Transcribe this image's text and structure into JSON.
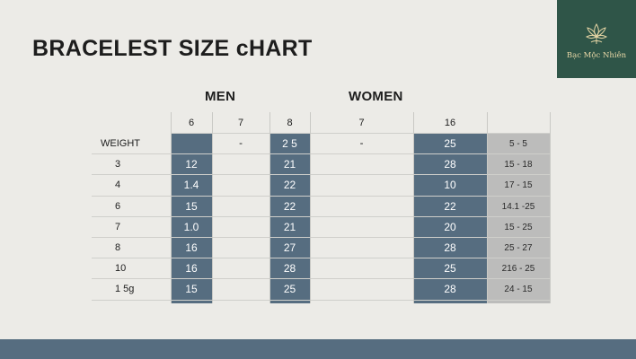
{
  "brand": {
    "name": "Bạc Mộc Nhiên",
    "logo_icon": "lotus-icon"
  },
  "title": "BRACELEST SIZE cHART",
  "groups": {
    "men": "MEN",
    "women": "WOMEN"
  },
  "columns": [
    "6",
    "7",
    "8",
    "7",
    "16",
    ""
  ],
  "rows": [
    {
      "label": "WEIGHT",
      "cells": [
        "",
        "-",
        "2 5",
        "-",
        "25",
        "5 - 5"
      ]
    },
    {
      "label": "3",
      "cells": [
        "12",
        "",
        "21",
        "",
        "28",
        "15 - 18"
      ]
    },
    {
      "label": "4",
      "cells": [
        "1.4",
        "",
        "22",
        "",
        "10",
        "17 - 15"
      ]
    },
    {
      "label": "6",
      "cells": [
        "15",
        "",
        "22",
        "",
        "22",
        "14.1 -25"
      ]
    },
    {
      "label": "7",
      "cells": [
        "1.0",
        "",
        "21",
        "",
        "20",
        "15 - 25"
      ]
    },
    {
      "label": "8",
      "cells": [
        "16",
        "",
        "27",
        "",
        "28",
        "25 - 27"
      ]
    },
    {
      "label": "10",
      "cells": [
        "16",
        "",
        "28",
        "",
        "25",
        "216 - 25"
      ]
    },
    {
      "label": "1 5g",
      "cells": [
        "15",
        "",
        "25",
        "",
        "28",
        "24 - 15"
      ]
    }
  ],
  "colors": {
    "background": "#ecebe7",
    "logo_bg": "#2f5548",
    "logo_fg": "#e8d7a6",
    "dark_column": "#566d80",
    "grey_column": "#bcbcbb",
    "footer_bar": "#566d80"
  }
}
